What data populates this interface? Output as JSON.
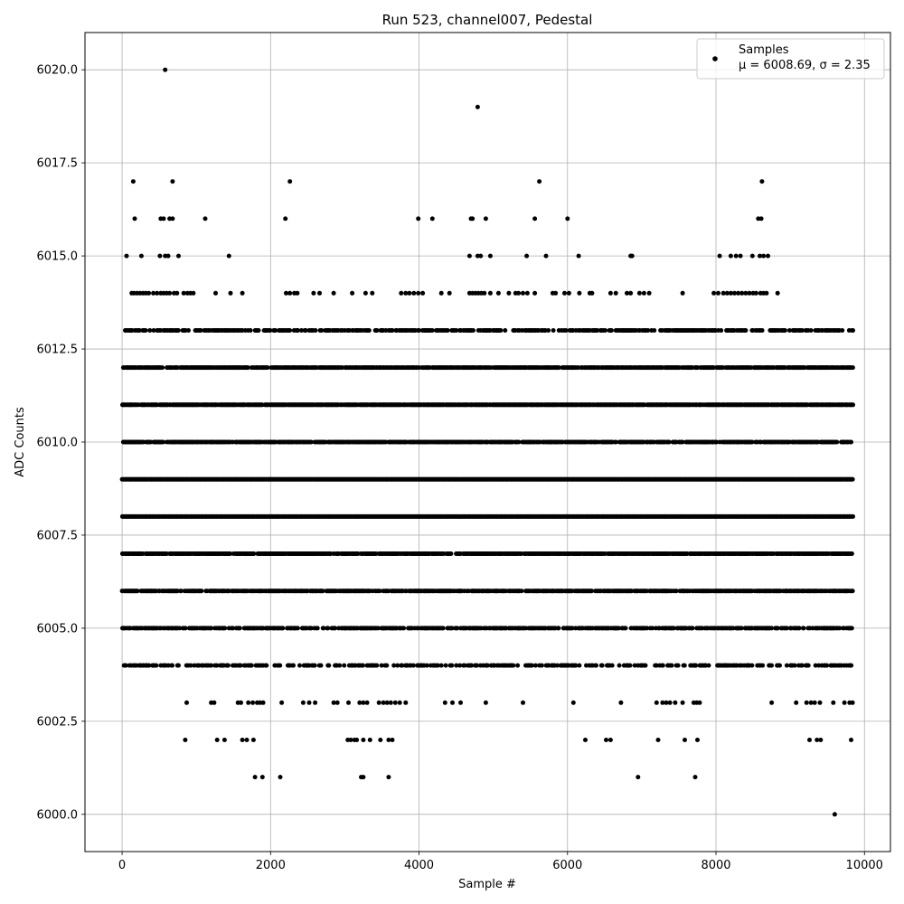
{
  "chart_data": {
    "type": "scatter",
    "title": "Run 523, channel007, Pedestal",
    "xlabel": "Sample #",
    "ylabel": "ADC Counts",
    "xlim": [
      -500,
      10350
    ],
    "ylim": [
      5999.0,
      6021.0
    ],
    "xticks": [
      0,
      2000,
      4000,
      6000,
      8000,
      10000
    ],
    "xtick_labels": [
      "0",
      "2000",
      "4000",
      "6000",
      "8000",
      "10000"
    ],
    "yticks": [
      6000.0,
      6002.5,
      6005.0,
      6007.5,
      6010.0,
      6012.5,
      6015.0,
      6017.5,
      6020.0
    ],
    "ytick_labels": [
      "6000.0",
      "6002.5",
      "6005.0",
      "6007.5",
      "6010.0",
      "6012.5",
      "6015.0",
      "6017.5",
      "6020.0"
    ],
    "grid": true,
    "legend": {
      "placement": "top-right",
      "entries": [
        {
          "name": "Samples",
          "stats": "μ = 6008.69, σ = 2.35"
        }
      ]
    },
    "color": "#000000",
    "sample_range": [
      0,
      9840
    ],
    "series": [
      {
        "name": "Samples",
        "levels": [
          {
            "y": 6020,
            "x": [
              580
            ]
          },
          {
            "y": 6019,
            "x": [
              4790
            ]
          },
          {
            "y": 6017,
            "x": [
              150,
              680,
              2260,
              5620,
              8620
            ]
          },
          {
            "y": 6016,
            "x": [
              170,
              520,
              560,
              640,
              680,
              1120,
              2200,
              3990,
              4180,
              4700,
              4720,
              4900,
              5560,
              6000,
              8570,
              8610
            ]
          },
          {
            "y": 6015,
            "x": [
              60,
              260,
              510,
              580,
              620,
              760,
              1440,
              4680,
              4790,
              4830,
              4960,
              5450,
              5710,
              6150,
              6850,
              6870,
              8050,
              8200,
              8270,
              8330,
              8490,
              8590,
              8640,
              8700
            ]
          },
          {
            "y": 6014,
            "x": [
              130,
              160,
              200,
              240,
              280,
              320,
              360,
              420,
              470,
              520,
              560,
              600,
              640,
              700,
              740,
              830,
              880,
              920,
              960,
              1260,
              1460,
              1620,
              2210,
              2260,
              2320,
              2360,
              2580,
              2660,
              2850,
              3100,
              3280,
              3370,
              3760,
              3820,
              3870,
              3930,
              3990,
              4050,
              4300,
              4410,
              4680,
              4720,
              4760,
              4800,
              4840,
              4880,
              4960,
              5070,
              5210,
              5300,
              5340,
              5400,
              5460,
              5560,
              5800,
              5840,
              5960,
              6020,
              6160,
              6300,
              6330,
              6580,
              6650,
              6800,
              6850,
              6970,
              7030,
              7100,
              7550,
              7970,
              8030,
              8100,
              8150,
              8200,
              8250,
              8300,
              8350,
              8400,
              8450,
              8500,
              8540,
              8600,
              8640,
              8680,
              8830
            ]
          }
        ],
        "dense_levels": [
          {
            "y": 6013,
            "density": 0.55
          },
          {
            "y": 6012,
            "density": 0.8
          },
          {
            "y": 6011,
            "density": 0.9
          },
          {
            "y": 6010,
            "density": 0.75
          },
          {
            "y": 6009,
            "density": 1.0
          },
          {
            "y": 6008,
            "density": 1.0
          },
          {
            "y": 6007,
            "density": 0.85
          },
          {
            "y": 6006,
            "density": 0.75
          },
          {
            "y": 6005,
            "density": 0.6
          },
          {
            "y": 6004,
            "density": 0.4
          }
        ],
        "sparse_levels": [
          {
            "y": 6003,
            "x": [
              870,
              1200,
              1240,
              1560,
              1600,
              1700,
              1760,
              1820,
              1860,
              1900,
              2150,
              2440,
              2520,
              2600,
              2850,
              2900,
              3050,
              3200,
              3250,
              3300,
              3460,
              3520,
              3570,
              3620,
              3680,
              3740,
              3820,
              4350,
              4450,
              4560,
              4900,
              5400,
              6080,
              6720,
              7200,
              7280,
              7330,
              7380,
              7450,
              7550,
              7700,
              7740,
              7780,
              8750,
              9080,
              9220,
              9280,
              9330,
              9400,
              9580,
              9730,
              9800,
              9840
            ]
          },
          {
            "y": 6002,
            "x": [
              850,
              1280,
              1380,
              1620,
              1680,
              1770,
              3040,
              3080,
              3130,
              3160,
              3250,
              3340,
              3480,
              3590,
              3640,
              6240,
              6520,
              6580,
              7220,
              7580,
              7750,
              9260,
              9360,
              9410,
              9820
            ]
          },
          {
            "y": 6001,
            "x": [
              1790,
              1890,
              2130,
              3220,
              3250,
              3590,
              6950,
              7720
            ]
          },
          {
            "y": 6000,
            "x": [
              9600
            ]
          }
        ]
      }
    ]
  }
}
